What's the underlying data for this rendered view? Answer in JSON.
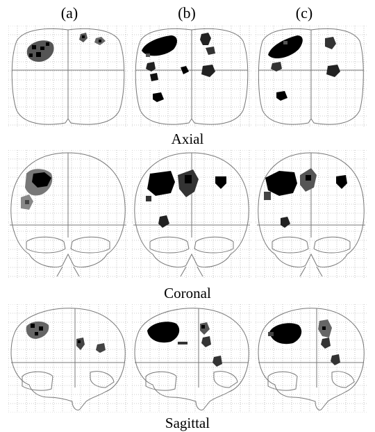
{
  "figure": {
    "columns": [
      "(a)",
      "(b)",
      "(c)"
    ],
    "rows": [
      "Axial",
      "Coronal",
      "Sagittal"
    ],
    "panels": [
      {
        "view": "axial",
        "column": "(a)",
        "blobs": "left-frontal-cluster, small-right-frontal-foci"
      },
      {
        "view": "axial",
        "column": "(b)",
        "blobs": "left-frontal, right-frontal, left-parietal, midline, right-parietal, posterior"
      },
      {
        "view": "axial",
        "column": "(c)",
        "blobs": "left-frontal, right-frontal, left-parietal, right-parietal, posterior"
      },
      {
        "view": "coronal",
        "column": "(a)",
        "blobs": "left-superior-cluster"
      },
      {
        "view": "coronal",
        "column": "(b)",
        "blobs": "left-superior, midline-superior, right-superior, inferior-midline"
      },
      {
        "view": "coronal",
        "column": "(c)",
        "blobs": "left-superior, midline-superior, right-superior, inferior-midline"
      },
      {
        "view": "sagittal",
        "column": "(a)",
        "blobs": "frontal, parietal, posterior"
      },
      {
        "view": "sagittal",
        "column": "(b)",
        "blobs": "frontal, parietal, occipital"
      },
      {
        "view": "sagittal",
        "column": "(c)",
        "blobs": "frontal, parietal, occipital"
      }
    ]
  },
  "colors": {
    "activation_dark": "#000000",
    "activation_mid": "#555555",
    "activation_light": "#9a9a9a",
    "outline": "#777777",
    "grid": "#9a9a9a"
  }
}
